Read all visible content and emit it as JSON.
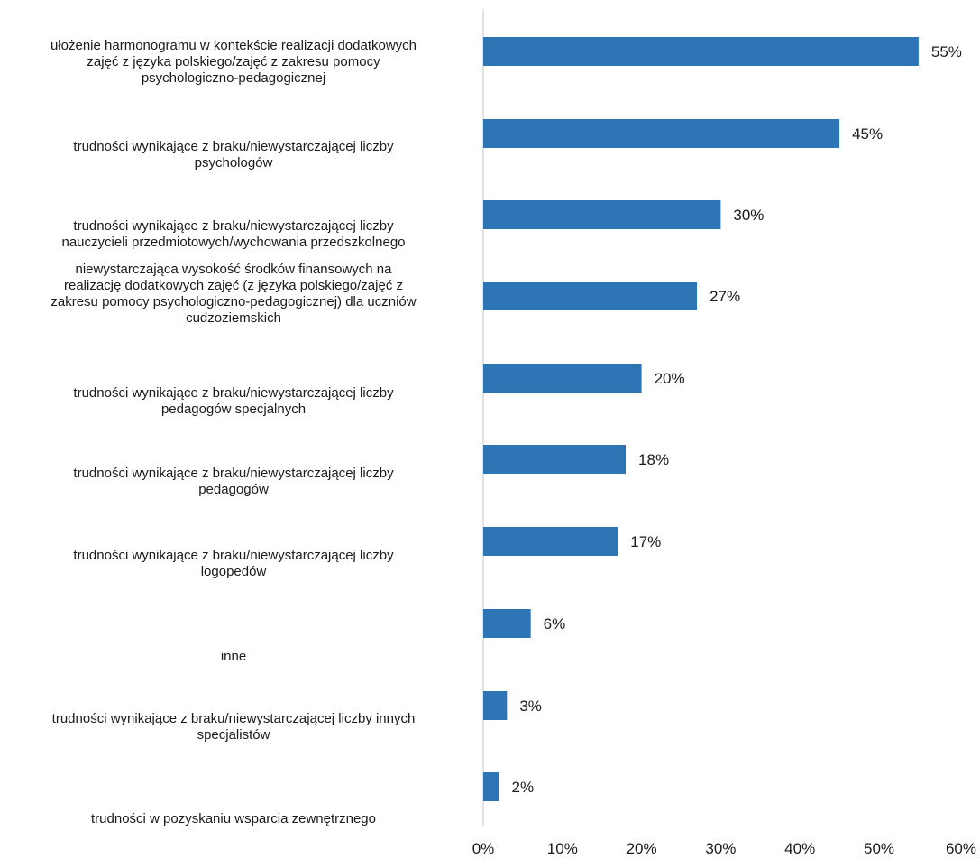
{
  "chart_data": {
    "type": "bar",
    "orientation": "horizontal",
    "categories": [
      "ułożenie harmonogramu  w kontekście realizacji dodatkowych zajęć z języka polskiego/zajęć z zakresu pomocy psychologiczno-pedagogicznej",
      "trudności wynikające z braku/niewystarczającej liczby psychologów",
      "trudności wynikające z braku/niewystarczającej liczby nauczycieli przedmiotowych/wychowania przedszkolnego",
      "niewystarczająca wysokość środków finansowych na realizację dodatkowych zajęć (z języka polskiego/zajęć z zakresu pomocy psychologiczno-pedagogicznej) dla uczniów cudzoziemskich",
      "trudności wynikające z braku/niewystarczającej liczby pedagogów specjalnych",
      "trudności wynikające z braku/niewystarczającej liczby pedagogów",
      "trudności wynikające z braku/niewystarczającej liczby logopedów",
      "inne",
      "trudności wynikające z braku/niewystarczającej liczby innych specjalistów",
      "trudności w pozyskaniu wsparcia zewnętrznego"
    ],
    "category_lines": [
      [
        "ułożenie harmonogramu  w kontekście realizacji dodatkowych",
        "zajęć z języka polskiego/zajęć z zakresu pomocy",
        "psychologiczno-pedagogicznej"
      ],
      [
        "trudności wynikające z braku/niewystarczającej liczby",
        "psychologów"
      ],
      [
        "trudności wynikające z braku/niewystarczającej liczby",
        "nauczycieli przedmiotowych/wychowania przedszkolnego"
      ],
      [
        "niewystarczająca wysokość środków finansowych na",
        "realizację dodatkowych zajęć (z języka polskiego/zajęć z",
        "zakresu pomocy psychologiczno-pedagogicznej) dla uczniów",
        "cudzoziemskich"
      ],
      [
        "trudności wynikające z braku/niewystarczającej liczby",
        "pedagogów specjalnych"
      ],
      [
        "trudności wynikające z braku/niewystarczającej liczby",
        "pedagogów"
      ],
      [
        "trudności wynikające z braku/niewystarczającej liczby",
        "logopedów"
      ],
      [
        "inne"
      ],
      [
        "trudności wynikające z braku/niewystarczającej liczby innych",
        "specjalistów"
      ],
      [
        "trudności w pozyskaniu wsparcia zewnętrznego"
      ]
    ],
    "values": [
      55,
      45,
      30,
      27,
      20,
      18,
      17,
      6,
      3,
      2
    ],
    "value_labels": [
      "55%",
      "45%",
      "30%",
      "27%",
      "20%",
      "18%",
      "17%",
      "6%",
      "3%",
      "2%"
    ],
    "xlim": [
      0,
      60
    ],
    "xticks": [
      0,
      10,
      20,
      30,
      40,
      50,
      60
    ],
    "xtick_labels": [
      "0%",
      "10%",
      "20%",
      "30%",
      "40%",
      "50%",
      "60%"
    ],
    "bar_color": "#2e75b6",
    "axis_color": "#d9d9d9",
    "grid": false,
    "legend": "none",
    "title": "",
    "xlabel": "",
    "ylabel": ""
  }
}
